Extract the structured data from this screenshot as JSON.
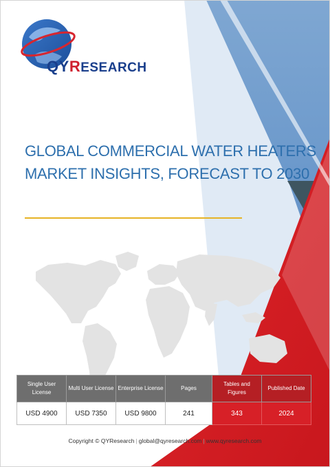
{
  "brand": {
    "logo_q": "Q",
    "logo_y": "Y",
    "logo_r": "R",
    "logo_rest": "ESEARCH"
  },
  "title": {
    "line1": "GLOBAL COMMERCIAL WATER HEATERS",
    "line2": "MARKET INSIGHTS, FORECAST TO 2030"
  },
  "license_table": {
    "headers": {
      "single_user": "Single User License",
      "multi_user": "Multi User License",
      "enterprise": "Enterprise License",
      "pages": "Pages",
      "tables_figures": "Tables and Figures",
      "published": "Published Date"
    },
    "values": {
      "single_user": "USD 4900",
      "multi_user": "USD 7350",
      "enterprise": "USD 9800",
      "pages": "241",
      "tables_figures": "343",
      "published": "2024"
    }
  },
  "footer": {
    "copyright": "Copyright © QYResearch",
    "email": "global@qyresearch.com",
    "website": "www.qyresearch.com"
  },
  "colors": {
    "title_blue": "#2d6fad",
    "brand_blue": "#1a3f8c",
    "brand_red": "#cf1f2e",
    "accent_red": "#d72027",
    "gold_rule": "#e6b325",
    "slate": "#3e5560"
  }
}
